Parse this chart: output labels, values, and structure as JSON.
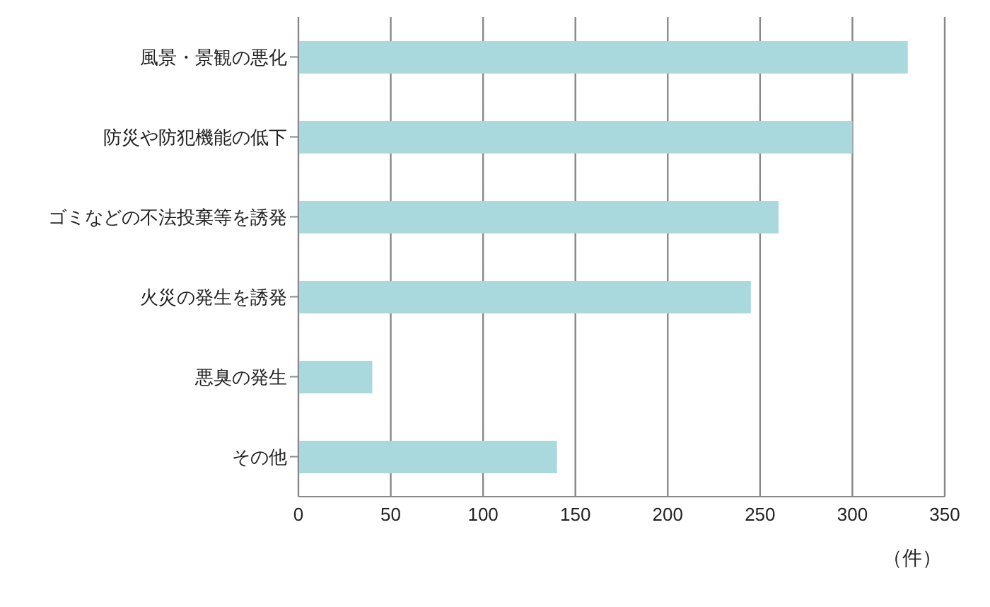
{
  "chart_data": {
    "type": "bar",
    "orientation": "horizontal",
    "categories": [
      "風景・景観の悪化",
      "防災や防犯機能の低下",
      "ゴミなどの不法投棄等を誘発",
      "火災の発生を誘発",
      "悪臭の発生",
      "その他"
    ],
    "values": [
      330,
      300,
      260,
      245,
      40,
      140
    ],
    "color": "#a9d9dc",
    "xlim": [
      0,
      350
    ],
    "xticks": [
      0,
      50,
      100,
      150,
      200,
      250,
      300,
      350
    ],
    "grid": "x",
    "xlabel": "（件）"
  }
}
